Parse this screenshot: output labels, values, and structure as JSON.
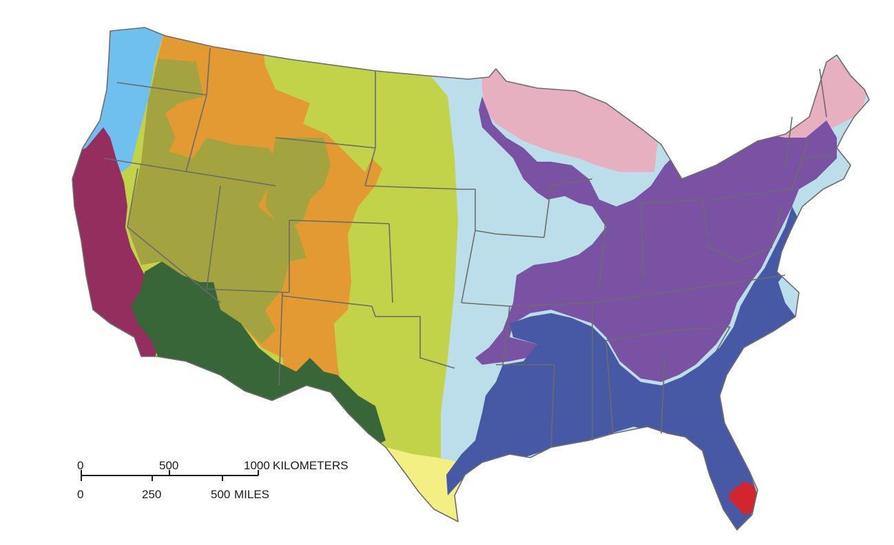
{
  "map": {
    "regions": [
      {
        "id": "pacific-northwest",
        "color": "#6fc0ee"
      },
      {
        "id": "northern-rockies",
        "color": "#e49a32"
      },
      {
        "id": "intermountain",
        "color": "#a3a33f"
      },
      {
        "id": "california",
        "color": "#932e5e"
      },
      {
        "id": "desert-southwest",
        "color": "#386639"
      },
      {
        "id": "great-plains",
        "color": "#c2d249"
      },
      {
        "id": "south-texas",
        "color": "#f3ef82"
      },
      {
        "id": "midwest",
        "color": "#bbdeea"
      },
      {
        "id": "great-lakes-northeast",
        "color": "#e7b0c0"
      },
      {
        "id": "central-appalachian",
        "color": "#7a52a3"
      },
      {
        "id": "southeast",
        "color": "#4759a5"
      },
      {
        "id": "south-florida",
        "color": "#d12630"
      }
    ],
    "boundary_color": "#6b6b6b"
  },
  "scale_bar": {
    "km_ticks": [
      "0",
      "500",
      "1000"
    ],
    "km_unit": "KILOMETERS",
    "mile_ticks": [
      "0",
      "250",
      "500"
    ],
    "mile_unit": "MILES"
  }
}
